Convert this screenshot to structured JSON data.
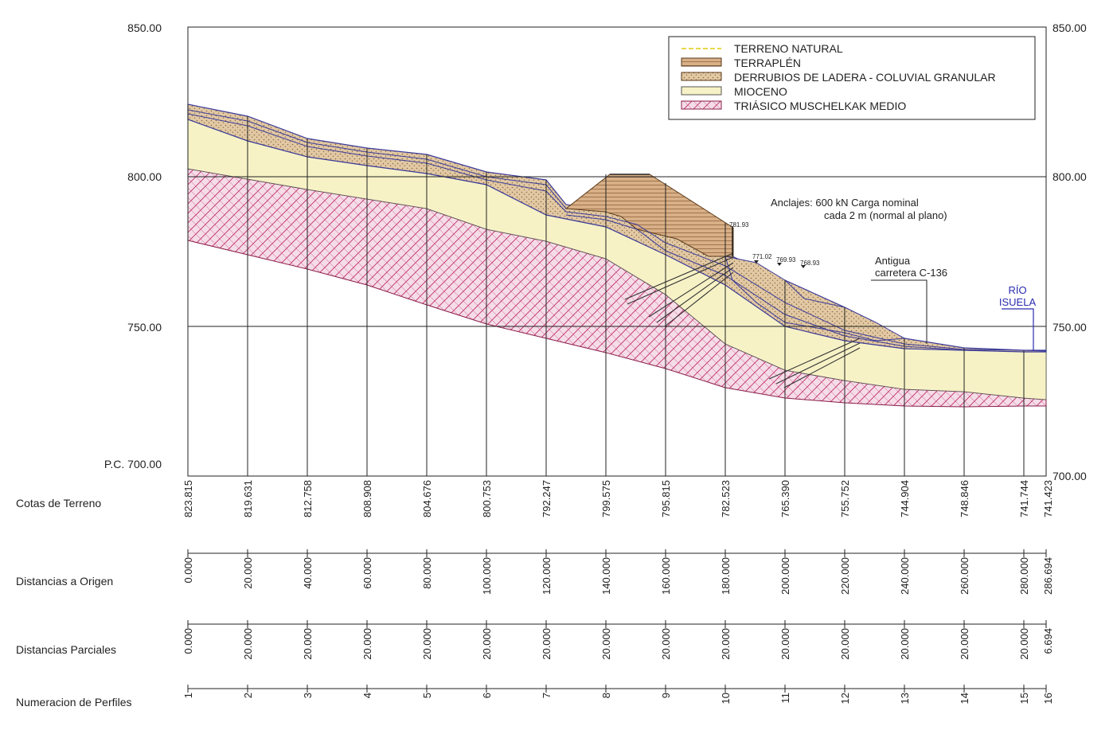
{
  "axis": {
    "left_labels": [
      "850.00",
      "800.00",
      "750.00",
      "P.C. 700.00"
    ],
    "right_labels": [
      "850.00",
      "800.00",
      "750.00",
      "700.00"
    ]
  },
  "legend": {
    "items": [
      {
        "label": "TERRENO NATURAL",
        "kind": "line",
        "color": "#e8d84a"
      },
      {
        "label": "TERRAPLÉN",
        "kind": "box",
        "color": "#c99a6a"
      },
      {
        "label": "DERRUBIOS DE LADERA - COLUVIAL GRANULAR",
        "kind": "box",
        "color": "#e2c9a3"
      },
      {
        "label": "MIOCENO",
        "kind": "box",
        "color": "#f6f2c6"
      },
      {
        "label": "TRIÁSICO MUSCHELKAK MEDIO",
        "kind": "box",
        "color": "#f5dde8"
      }
    ]
  },
  "annotations": {
    "anclajes_1": "Anclajes: 600 kN Carga nominal",
    "anclajes_2": "cada 2 m (normal al plano)",
    "carretera_1": "Antigua",
    "carretera_2": "carretera C-136",
    "rio_1": "RÍO",
    "rio_2": "ISUELA",
    "elev_a": "781.93",
    "elev_b": "771.02",
    "elev_c": "769.93",
    "elev_d": "768.93"
  },
  "table": {
    "row_labels": {
      "cotas": "Cotas de Terreno",
      "dist_origen": "Distancias a Origen",
      "dist_parciales": "Distancias Parciales",
      "perfiles": "Numeracion de Perfiles"
    },
    "cotas": [
      "823.815",
      "819.631",
      "812.758",
      "808.908",
      "804.676",
      "800.753",
      "792.247",
      "799.575",
      "795.815",
      "782.523",
      "765.390",
      "755.752",
      "744.904",
      "748.846",
      "741.744",
      "741.423"
    ],
    "dist_origen": [
      "0.000",
      "20.000",
      "40.000",
      "60.000",
      "80.000",
      "100.000",
      "120.000",
      "140.000",
      "160.000",
      "180.000",
      "200.000",
      "220.000",
      "240.000",
      "260.000",
      "280.000",
      "286.694"
    ],
    "dist_parciales": [
      "0.000",
      "20.000",
      "20.000",
      "20.000",
      "20.000",
      "20.000",
      "20.000",
      "20.000",
      "20.000",
      "20.000",
      "20.000",
      "20.000",
      "20.000",
      "20.000",
      "20.000",
      "6.694"
    ],
    "perfiles": [
      "1",
      "2",
      "3",
      "4",
      "5",
      "6",
      "7",
      "8",
      "9",
      "10",
      "11",
      "12",
      "13",
      "14",
      "15",
      "16"
    ]
  },
  "colors": {
    "mioceno": "#f6f2c6",
    "triasico": "#f5dde8",
    "triasico_hatch": "#c0306a",
    "terraplen": "#c99a6a",
    "derrubios": "#e2c9a3",
    "profile_line": "#3a3a9a",
    "rio": "#2b2bb0"
  }
}
